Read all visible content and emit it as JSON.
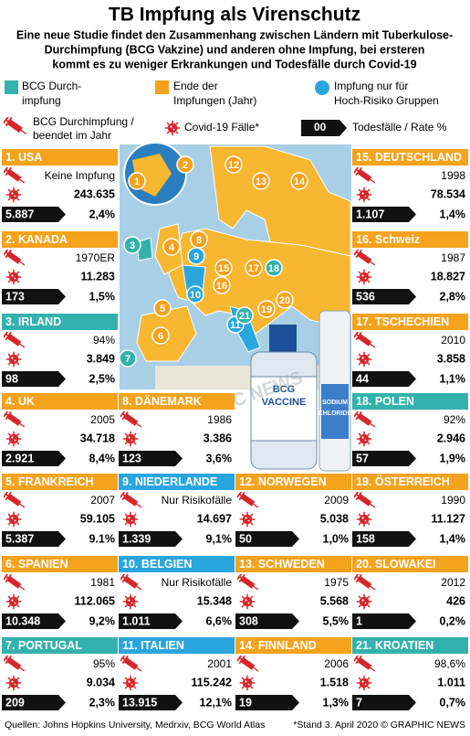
{
  "header": {
    "title": "TB Impfung als Virenschutz",
    "subtitle": [
      "Eine neue Studie findet den Zusammenhang zwischen Ländern mit Tuberkulose-",
      "Durchimpfung (BCG Vakzine) und anderen ohne Impfung,  bei ersteren",
      "kommt es zu weniger Erkrankungen und Todesfälle durch Covid-19"
    ]
  },
  "legend": {
    "bcg_coverage": [
      "BCG Durch-",
      "impfung"
    ],
    "ended": [
      "Ende der",
      "Impfungen (Jahr)"
    ],
    "risk_only": [
      "Impfung nur für",
      "Hoch-Risiko Gruppen"
    ],
    "bcg_icon": [
      "BCG Durchimpfung /",
      "beendet im Jahr"
    ],
    "cases_icon": "Covid-19 Fälle*",
    "deaths_sample": "00",
    "deaths_icon": "Todesfälle / Rate %"
  },
  "colors": {
    "ended": "#f5a21c",
    "bcg_coverage": "#33b2ad",
    "risk_only": "#2aa6df",
    "icon": "#d7262b"
  },
  "countries": [
    {
      "label": "1. USA",
      "color": "#f5a21c",
      "bcg": "Keine Impfung",
      "cases": "243.635",
      "deaths": "5.887",
      "rate": "2,4%"
    },
    {
      "label": "2. KANADA",
      "color": "#f5a21c",
      "bcg": "1970ER",
      "cases": "11.283",
      "deaths": "173",
      "rate": "1,5%"
    },
    {
      "label": "3. IRLAND",
      "color": "#33b2ad",
      "bcg": "94%",
      "cases": "3.849",
      "deaths": "98",
      "rate": "2,5%"
    },
    {
      "label": "4. UK",
      "color": "#f5a21c",
      "bcg": "2005",
      "cases": "34.718",
      "deaths": "2.921",
      "rate": "8,4%"
    },
    {
      "label": "5. FRANKREICH",
      "color": "#f5a21c",
      "bcg": "2007",
      "cases": "59.105",
      "deaths": "5.387",
      "rate": "9.1%"
    },
    {
      "label": "6. SPANIEN",
      "color": "#f5a21c",
      "bcg": "1981",
      "cases": "112.065",
      "deaths": "10.348",
      "rate": "9,2%"
    },
    {
      "label": "7. PORTUGAL",
      "color": "#33b2ad",
      "bcg": "95%",
      "cases": "9.034",
      "deaths": "209",
      "rate": "2,3%"
    },
    {
      "label": "8. DÄNEMARK",
      "color": "#f5a21c",
      "bcg": "1986",
      "cases": "3.386",
      "deaths": "123",
      "rate": "3,6%"
    },
    {
      "label": "9. NIEDERLANDE",
      "color": "#2aa6df",
      "bcg": "Nur Risikofälle",
      "cases": "14.697",
      "deaths": "1.339",
      "rate": "9,1%"
    },
    {
      "label": "10. BELGIEN",
      "color": "#2aa6df",
      "bcg": "Nur Risikofälle",
      "cases": "15.348",
      "deaths": "1.011",
      "rate": "6,6%"
    },
    {
      "label": "11. ITALIEN",
      "color": "#2aa6df",
      "bcg": "2001",
      "cases": "115.242",
      "deaths": "13.915",
      "rate": "12,1%"
    },
    {
      "label": "12. NORWEGEN",
      "color": "#f5a21c",
      "bcg": "2009",
      "cases": "5.038",
      "deaths": "50",
      "rate": "1,0%"
    },
    {
      "label": "13. SCHWEDEN",
      "color": "#f5a21c",
      "bcg": "1975",
      "cases": "5.568",
      "deaths": "308",
      "rate": "5,5%"
    },
    {
      "label": "14. FINNLAND",
      "color": "#f5a21c",
      "bcg": "2006",
      "cases": "1.518",
      "deaths": "19",
      "rate": "1,3%"
    },
    {
      "label": "15. DEUTSCHLAND",
      "color": "#f5a21c",
      "bcg": "1998",
      "cases": "78.534",
      "deaths": "1.107",
      "rate": "1,4%"
    },
    {
      "label": "16. Schweiz",
      "color": "#f5a21c",
      "bcg": "1987",
      "cases": "18.827",
      "deaths": "536",
      "rate": "2,8%"
    },
    {
      "label": "17. TSCHECHIEN",
      "color": "#f5a21c",
      "bcg": "2010",
      "cases": "3.858",
      "deaths": "44",
      "rate": "1,1%"
    },
    {
      "label": "18. POLEN",
      "color": "#33b2ad",
      "bcg": "92%",
      "cases": "2.946",
      "deaths": "57",
      "rate": "1,9%"
    },
    {
      "label": "19. ÖSTERREICH",
      "color": "#f5a21c",
      "bcg": "1990",
      "cases": "11.127",
      "deaths": "158",
      "rate": "1,4%"
    },
    {
      "label": "20. SLOWAKEI",
      "color": "#f5a21c",
      "bcg": "2012",
      "cases": "426",
      "deaths": "1",
      "rate": "0,2%"
    },
    {
      "label": "21. KROATIEN",
      "color": "#33b2ad",
      "bcg": "98,6%",
      "cases": "1.011",
      "deaths": "7",
      "rate": "0,7%"
    }
  ],
  "map": {
    "markers": [
      "1",
      "2",
      "3",
      "4",
      "5",
      "6",
      "7",
      "8",
      "9",
      "10",
      "11",
      "12",
      "13",
      "14",
      "15",
      "16",
      "17",
      "18",
      "19",
      "20",
      "21"
    ]
  },
  "image": {
    "bottle": [
      "BCG",
      "VACCINE"
    ],
    "ampoule": [
      "SODIUM",
      "CHLORIDE"
    ],
    "watermark": "GRAPHIC NEWS"
  },
  "footer": {
    "source": "Quellen: Johns Hopkins University, Medrxiv, BCG World Atlas",
    "note": "*Stand 3. April 2020 © GRAPHIC NEWS"
  }
}
